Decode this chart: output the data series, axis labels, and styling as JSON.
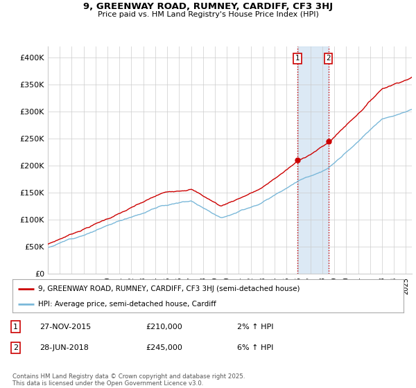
{
  "title1": "9, GREENWAY ROAD, RUMNEY, CARDIFF, CF3 3HJ",
  "title2": "Price paid vs. HM Land Registry's House Price Index (HPI)",
  "ylabel_ticks": [
    "£0",
    "£50K",
    "£100K",
    "£150K",
    "£200K",
    "£250K",
    "£300K",
    "£350K",
    "£400K"
  ],
  "ytick_vals": [
    0,
    50000,
    100000,
    150000,
    200000,
    250000,
    300000,
    350000,
    400000
  ],
  "ylim": [
    0,
    420000
  ],
  "xlim_start": 1995,
  "xlim_end": 2025.5,
  "sale1_date": 2015.92,
  "sale1_price": 210000,
  "sale2_date": 2018.5,
  "sale2_price": 245000,
  "hpi_line_color": "#7ab8d9",
  "price_line_color": "#cc0000",
  "sale_dot_color": "#cc0000",
  "shaded_color": "#c6dbef",
  "legend_line1": "9, GREENWAY ROAD, RUMNEY, CARDIFF, CF3 3HJ (semi-detached house)",
  "legend_line2": "HPI: Average price, semi-detached house, Cardiff",
  "table_row1": [
    "1",
    "27-NOV-2015",
    "£210,000",
    "2% ↑ HPI"
  ],
  "table_row2": [
    "2",
    "28-JUN-2018",
    "£245,000",
    "6% ↑ HPI"
  ],
  "footer": "Contains HM Land Registry data © Crown copyright and database right 2025.\nThis data is licensed under the Open Government Licence v3.0.",
  "grid_color": "#cccccc"
}
